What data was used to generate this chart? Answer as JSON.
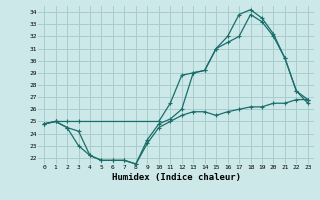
{
  "xlabel": "Humidex (Indice chaleur)",
  "xlim": [
    -0.5,
    23.5
  ],
  "ylim": [
    21.5,
    34.5
  ],
  "yticks": [
    22,
    23,
    24,
    25,
    26,
    27,
    28,
    29,
    30,
    31,
    32,
    33,
    34
  ],
  "xticks": [
    0,
    1,
    2,
    3,
    4,
    5,
    6,
    7,
    8,
    9,
    10,
    11,
    12,
    13,
    14,
    15,
    16,
    17,
    18,
    19,
    20,
    21,
    22,
    23
  ],
  "bg_color": "#cce8e8",
  "grid_color": "#a8cccc",
  "line_color": "#1a6e6a",
  "line1_x": [
    0,
    1,
    2,
    3,
    10,
    11,
    12,
    13,
    14,
    15,
    16,
    17,
    18,
    19,
    20,
    21,
    22,
    23
  ],
  "line1_y": [
    24.8,
    25.0,
    25.0,
    25.0,
    25.0,
    26.5,
    28.8,
    29.0,
    29.2,
    31.0,
    31.5,
    32.0,
    33.8,
    33.2,
    32.0,
    30.2,
    27.5,
    26.8
  ],
  "line2_x": [
    0,
    1,
    2,
    3,
    4,
    5,
    6,
    7,
    8,
    9,
    10,
    11,
    12,
    13,
    14,
    15,
    16,
    17,
    18,
    19,
    20,
    21,
    22,
    23
  ],
  "line2_y": [
    24.8,
    25.0,
    24.5,
    23.0,
    22.2,
    21.8,
    21.8,
    21.8,
    21.5,
    23.2,
    24.5,
    25.0,
    25.5,
    25.8,
    25.8,
    25.5,
    25.8,
    26.0,
    26.2,
    26.2,
    26.5,
    26.5,
    26.8,
    26.8
  ],
  "line3_x": [
    0,
    1,
    2,
    3,
    4,
    5,
    6,
    7,
    8,
    9,
    10,
    11,
    12,
    13,
    14,
    15,
    16,
    17,
    18,
    19,
    20,
    21,
    22,
    23
  ],
  "line3_y": [
    24.8,
    25.0,
    24.5,
    24.2,
    22.2,
    21.8,
    21.8,
    21.8,
    21.5,
    23.5,
    24.8,
    25.2,
    26.0,
    29.0,
    29.2,
    31.0,
    32.0,
    33.8,
    34.2,
    33.5,
    32.2,
    30.2,
    27.5,
    26.5
  ]
}
